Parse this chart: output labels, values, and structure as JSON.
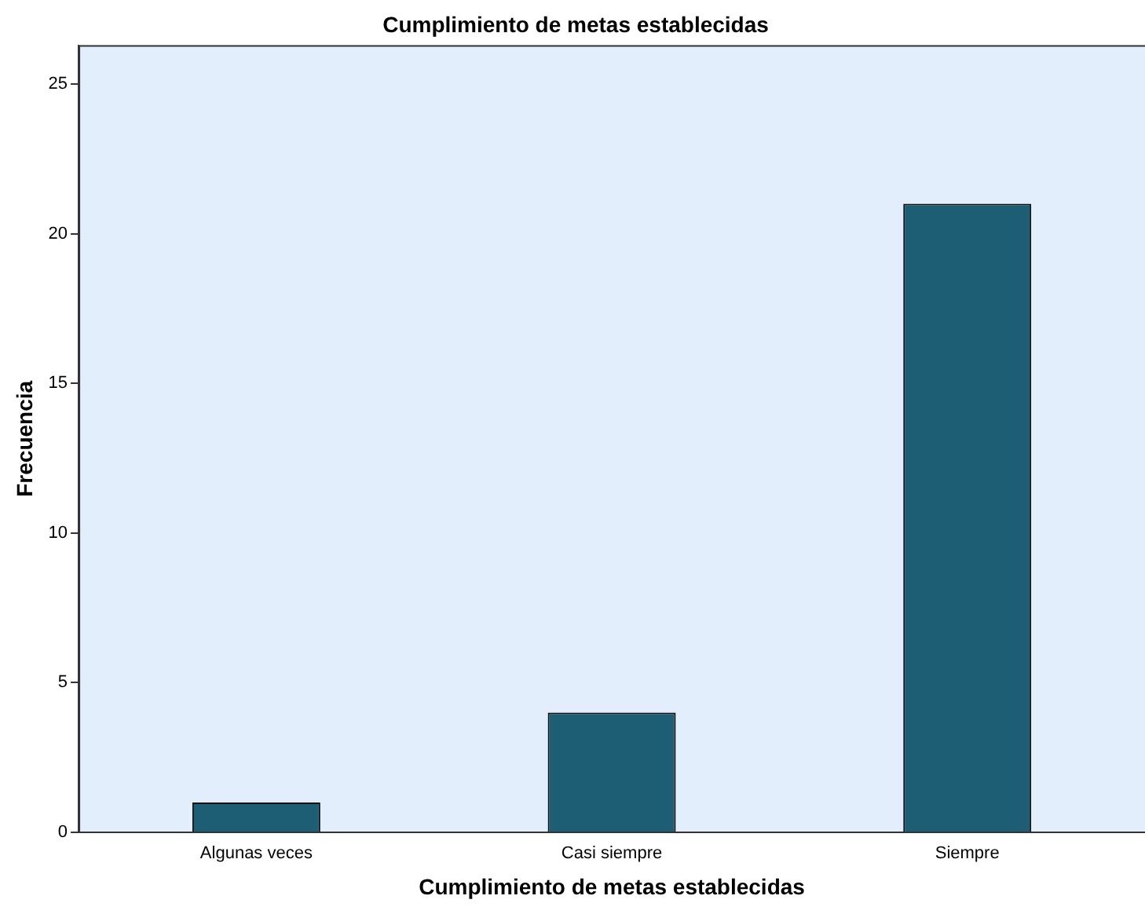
{
  "chart_data": {
    "type": "bar",
    "title": "Cumplimiento de metas establecidas",
    "xlabel": "Cumplimiento de metas establecidas",
    "ylabel": "Frecuencia",
    "categories": [
      "Algunas veces",
      "Casi siempre",
      "Siempre"
    ],
    "values": [
      1,
      4,
      21
    ],
    "color": "#1d5e74",
    "ylim": [
      0,
      26.3
    ],
    "yticks": [
      0,
      5,
      10,
      15,
      20,
      25
    ],
    "grid": false,
    "legend": false
  }
}
